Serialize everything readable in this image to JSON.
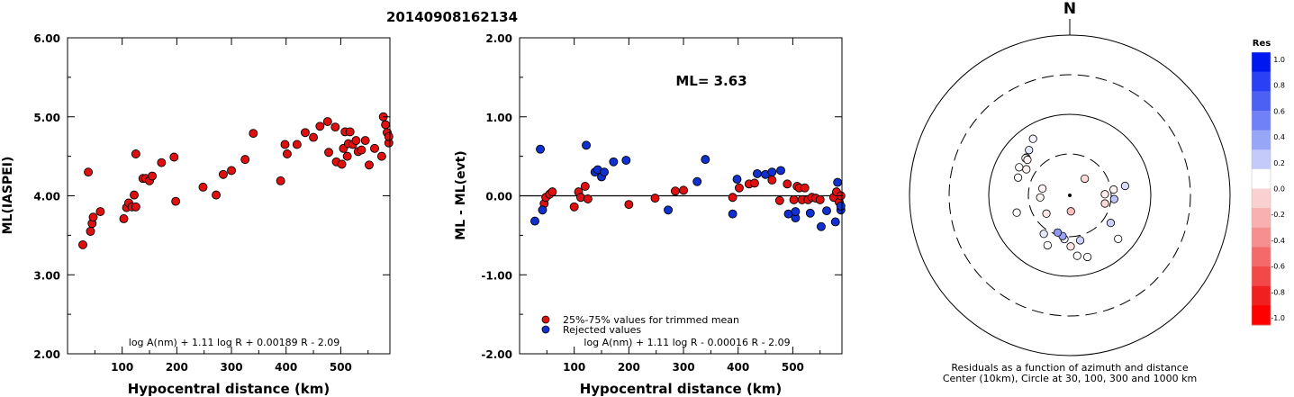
{
  "title": "20140908162134",
  "chart_data": [
    {
      "type": "scatter",
      "id": "ml-vs-distance",
      "xlabel": "Hypocentral distance (km)",
      "ylabel": "ML(IASPEI)",
      "xlim": [
        0,
        590
      ],
      "ylim": [
        2.0,
        6.0
      ],
      "xticks": [
        "100",
        "200",
        "300",
        "400",
        "500"
      ],
      "yticks": [
        "2.00",
        "3.00",
        "4.00",
        "5.00",
        "6.00"
      ],
      "formula": "log A(nm) + 1.11 log R + 0.00189 R - 2.09",
      "points": [
        [
          28,
          3.38
        ],
        [
          38,
          4.3
        ],
        [
          42,
          3.55
        ],
        [
          45,
          3.65
        ],
        [
          47,
          3.73
        ],
        [
          60,
          3.8
        ],
        [
          103,
          3.71
        ],
        [
          108,
          3.85
        ],
        [
          112,
          3.91
        ],
        [
          118,
          3.86
        ],
        [
          122,
          4.01
        ],
        [
          125,
          3.86
        ],
        [
          125,
          4.53
        ],
        [
          138,
          4.22
        ],
        [
          143,
          4.22
        ],
        [
          150,
          4.19
        ],
        [
          155,
          4.25
        ],
        [
          172,
          4.42
        ],
        [
          195,
          4.49
        ],
        [
          198,
          3.93
        ],
        [
          248,
          4.11
        ],
        [
          272,
          4.01
        ],
        [
          285,
          4.27
        ],
        [
          300,
          4.32
        ],
        [
          325,
          4.46
        ],
        [
          340,
          4.79
        ],
        [
          390,
          4.19
        ],
        [
          398,
          4.65
        ],
        [
          402,
          4.53
        ],
        [
          420,
          4.65
        ],
        [
          435,
          4.8
        ],
        [
          450,
          4.74
        ],
        [
          462,
          4.88
        ],
        [
          476,
          4.94
        ],
        [
          478,
          4.55
        ],
        [
          490,
          4.87
        ],
        [
          492,
          4.43
        ],
        [
          502,
          4.4
        ],
        [
          505,
          4.6
        ],
        [
          508,
          4.81
        ],
        [
          512,
          4.5
        ],
        [
          514,
          4.66
        ],
        [
          517,
          4.81
        ],
        [
          522,
          4.65
        ],
        [
          528,
          4.7
        ],
        [
          532,
          4.56
        ],
        [
          538,
          4.58
        ],
        [
          545,
          4.7
        ],
        [
          552,
          4.39
        ],
        [
          562,
          4.6
        ],
        [
          575,
          4.5
        ],
        [
          578,
          5.0
        ],
        [
          582,
          4.9
        ],
        [
          585,
          4.8
        ],
        [
          588,
          4.67
        ],
        [
          588,
          4.75
        ]
      ]
    },
    {
      "type": "scatter",
      "id": "residual-vs-distance",
      "xlabel": "Hypocentral distance (km)",
      "ylabel": "ML - ML(evt)",
      "xlim": [
        0,
        590
      ],
      "ylim": [
        -2.0,
        2.0
      ],
      "xticks": [
        "100",
        "200",
        "300",
        "400",
        "500"
      ],
      "yticks": [
        "-2.00",
        "-1.00",
        "0.00",
        "1.00",
        "2.00"
      ],
      "annotation": "ML= 3.63",
      "formula": "log A(nm) + 1.11 log R - 0.00016 R - 2.09",
      "legend": [
        {
          "label": "25%-75% values for trimmed mean",
          "color": "#e01010"
        },
        {
          "label": "Rejected values",
          "color": "#1030d0"
        }
      ],
      "series": [
        {
          "name": "25%-75% values for trimmed mean",
          "points": [
            [
              45,
              -0.1
            ],
            [
              48,
              -0.02
            ],
            [
              55,
              0.02
            ],
            [
              60,
              0.05
            ],
            [
              100,
              -0.14
            ],
            [
              108,
              0.05
            ],
            [
              112,
              -0.02
            ],
            [
              120,
              0.12
            ],
            [
              125,
              -0.04
            ],
            [
              200,
              -0.11
            ],
            [
              248,
              -0.03
            ],
            [
              285,
              0.06
            ],
            [
              300,
              0.07
            ],
            [
              390,
              -0.02
            ],
            [
              402,
              0.1
            ],
            [
              420,
              0.15
            ],
            [
              430,
              0.16
            ],
            [
              462,
              0.2
            ],
            [
              476,
              -0.06
            ],
            [
              490,
              0.15
            ],
            [
              502,
              -0.05
            ],
            [
              508,
              0.12
            ],
            [
              512,
              0.1
            ],
            [
              517,
              -0.05
            ],
            [
              522,
              0.1
            ],
            [
              528,
              -0.05
            ],
            [
              535,
              -0.02
            ],
            [
              542,
              -0.03
            ],
            [
              550,
              -0.05
            ],
            [
              575,
              -0.02
            ],
            [
              580,
              0.05
            ],
            [
              585,
              -0.08
            ],
            [
              588,
              0.0
            ]
          ]
        },
        {
          "name": "Rejected values",
          "points": [
            [
              28,
              -0.32
            ],
            [
              38,
              0.59
            ],
            [
              42,
              -0.18
            ],
            [
              122,
              0.64
            ],
            [
              138,
              0.3
            ],
            [
              143,
              0.33
            ],
            [
              150,
              0.24
            ],
            [
              155,
              0.3
            ],
            [
              172,
              0.43
            ],
            [
              195,
              0.45
            ],
            [
              272,
              -0.18
            ],
            [
              325,
              0.18
            ],
            [
              340,
              0.46
            ],
            [
              390,
              -0.23
            ],
            [
              398,
              0.21
            ],
            [
              435,
              0.28
            ],
            [
              450,
              0.27
            ],
            [
              462,
              0.3
            ],
            [
              478,
              0.32
            ],
            [
              492,
              -0.23
            ],
            [
              505,
              -0.28
            ],
            [
              505,
              -0.2
            ],
            [
              532,
              -0.22
            ],
            [
              552,
              -0.39
            ],
            [
              562,
              -0.19
            ],
            [
              578,
              -0.33
            ],
            [
              582,
              0.17
            ],
            [
              588,
              -0.18
            ],
            [
              588,
              -0.13
            ]
          ]
        }
      ]
    },
    {
      "type": "scatter",
      "id": "azimuth-polar",
      "north_label": "N",
      "caption": [
        "Residuals as a function of azimuth and distance",
        "Center (10km), Circle at 30, 100, 300 and 1000 km"
      ],
      "colorbar": {
        "title": "Res",
        "ticks": [
          "1.0",
          "0.8",
          "0.6",
          "0.4",
          "0.2",
          "0.0",
          "-0.2",
          "-0.4",
          "-0.6",
          "-0.8",
          "-1.0"
        ],
        "colors": [
          "#0018f0",
          "#2a40f4",
          "#4c60f4",
          "#7080f6",
          "#98a6f8",
          "#c4cafa",
          "#ffffff",
          "#fad0d0",
          "#f8b0b0",
          "#f69090",
          "#f46a6a",
          "#f24848",
          "#f02020",
          "#ff0000"
        ]
      },
      "points": [
        [
          10.0,
          176.0,
          -0.25
        ],
        [
          14.0,
          42.0,
          -0.15
        ],
        [
          18.5,
          232.0,
          -0.1
        ],
        [
          22.5,
          103.0,
          -0.15
        ],
        [
          27.6,
          82.4,
          -0.05
        ],
        [
          31.6,
          301.0,
          -0.05
        ],
        [
          36.0,
          311.0,
          -0.1
        ],
        [
          36.0,
          310.0,
          0.0
        ],
        [
          38.0,
          318.0,
          0.1
        ],
        [
          42.1,
          327.0,
          0.05
        ],
        [
          40.6,
          132.0,
          0.0
        ],
        [
          40.0,
          164.0,
          0.0
        ],
        [
          38.0,
          173.0,
          0.0
        ],
        [
          31.9,
          179.0,
          -0.1
        ],
        [
          27.5,
          187.0,
          0.05
        ],
        [
          28.8,
          167.0,
          0.2
        ],
        [
          25.8,
          190.0,
          0.4
        ],
        [
          24.4,
          198.0,
          0.45
        ],
        [
          29.0,
          214.0,
          0.1
        ],
        [
          34.1,
          204.0,
          0.0
        ],
        [
          30.8,
          124.0,
          0.2
        ],
        [
          21.9,
          88.2,
          -0.08
        ],
        [
          35.0,
          80.3,
          0.15
        ],
        [
          27.8,
          94.8,
          0.25
        ],
        [
          34.8,
          252.0,
          0.0
        ],
        [
          34.5,
          310.0,
          -0.05
        ],
        [
          36.1,
          299.0,
          0.0
        ],
        [
          34.1,
          289.0,
          0.0
        ],
        [
          18.5,
          266.0,
          -0.05
        ],
        [
          17.6,
          284.0,
          -0.05
        ]
      ]
    }
  ]
}
